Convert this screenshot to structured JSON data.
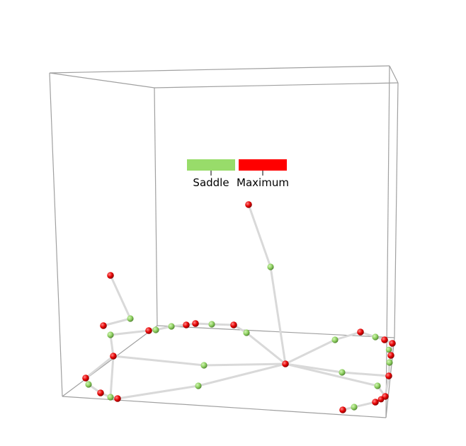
{
  "legend": {
    "items": [
      {
        "label": "Saddle",
        "color": "#98dc6a"
      },
      {
        "label": "Maximum",
        "color": "#ff0000"
      }
    ]
  },
  "colors": {
    "box": "#9a9a9a",
    "arc": "#d8d8d8",
    "saddle": "#98dc6a",
    "maximum": "#ff0000"
  }
}
